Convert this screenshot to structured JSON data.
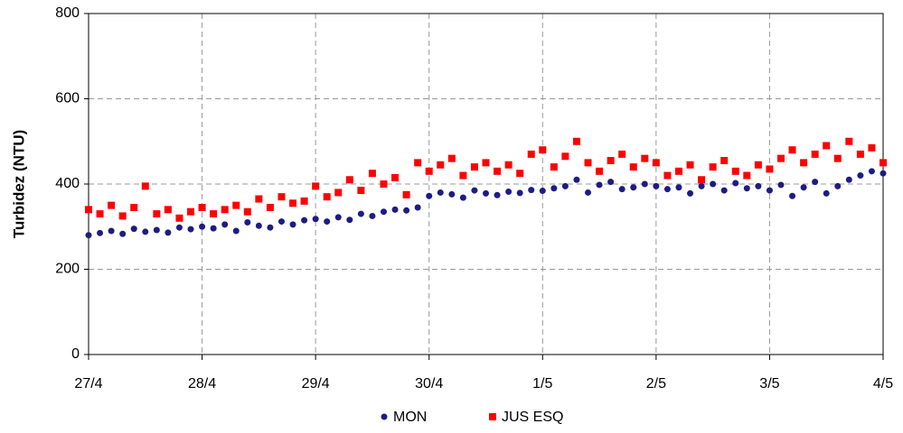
{
  "chart_data": {
    "type": "scatter",
    "ylabel": "Turbidez (NTU)",
    "x": [
      0,
      0.1,
      0.2,
      0.3,
      0.4,
      0.5,
      0.6,
      0.7,
      0.8,
      0.9,
      1,
      1.1,
      1.2,
      1.3,
      1.4,
      1.5,
      1.6,
      1.7,
      1.8,
      1.9,
      2,
      2.1,
      2.2,
      2.3,
      2.4,
      2.5,
      2.6,
      2.7,
      2.8,
      2.9,
      3,
      3.1,
      3.2,
      3.3,
      3.4,
      3.5,
      3.6,
      3.7,
      3.8,
      3.9,
      4,
      4.1,
      4.2,
      4.3,
      4.4,
      4.5,
      4.6,
      4.7,
      4.8,
      4.9,
      5,
      5.1,
      5.2,
      5.3,
      5.4,
      5.5,
      5.6,
      5.7,
      5.8,
      5.9,
      6,
      6.1,
      6.2,
      6.3,
      6.4,
      6.5,
      6.6,
      6.7,
      6.8,
      6.9,
      7
    ],
    "series": [
      {
        "name": "MON",
        "color": "#1c1c84",
        "marker": "circle",
        "values": [
          280,
          285,
          290,
          283,
          295,
          288,
          292,
          286,
          298,
          294,
          300,
          296,
          305,
          290,
          310,
          302,
          298,
          312,
          305,
          315,
          318,
          312,
          322,
          316,
          330,
          325,
          335,
          340,
          338,
          345,
          372,
          380,
          376,
          368,
          385,
          378,
          374,
          382,
          379,
          386,
          384,
          390,
          395,
          410,
          380,
          398,
          405,
          388,
          392,
          400,
          395,
          388,
          392,
          378,
          395,
          400,
          385,
          402,
          390,
          395,
          385,
          398,
          372,
          392,
          405,
          378,
          395,
          410,
          420,
          430,
          425
        ]
      },
      {
        "name": "JUS ESQ",
        "color": "#ff0000",
        "marker": "square",
        "values": [
          340,
          330,
          350,
          325,
          345,
          395,
          330,
          340,
          320,
          335,
          345,
          330,
          340,
          350,
          335,
          365,
          345,
          370,
          355,
          360,
          395,
          370,
          380,
          410,
          385,
          425,
          400,
          415,
          375,
          450,
          430,
          445,
          460,
          420,
          440,
          450,
          430,
          445,
          425,
          470,
          480,
          440,
          465,
          500,
          450,
          430,
          455,
          470,
          440,
          460,
          450,
          420,
          430,
          445,
          410,
          440,
          455,
          430,
          420,
          445,
          435,
          460,
          480,
          450,
          470,
          490,
          460,
          500,
          470,
          485,
          450
        ]
      }
    ],
    "xlim": [
      0,
      7
    ],
    "xticks": [
      {
        "value": 0,
        "label": "27/4"
      },
      {
        "value": 1,
        "label": "28/4"
      },
      {
        "value": 2,
        "label": "29/4"
      },
      {
        "value": 3,
        "label": "30/4"
      },
      {
        "value": 4,
        "label": "1/5"
      },
      {
        "value": 5,
        "label": "2/5"
      },
      {
        "value": 6,
        "label": "3/5"
      },
      {
        "value": 7,
        "label": "4/5"
      }
    ],
    "ylim": [
      0,
      800
    ],
    "yticks": [
      0,
      200,
      400,
      600,
      800
    ],
    "grid": true,
    "legend": "bottom"
  }
}
